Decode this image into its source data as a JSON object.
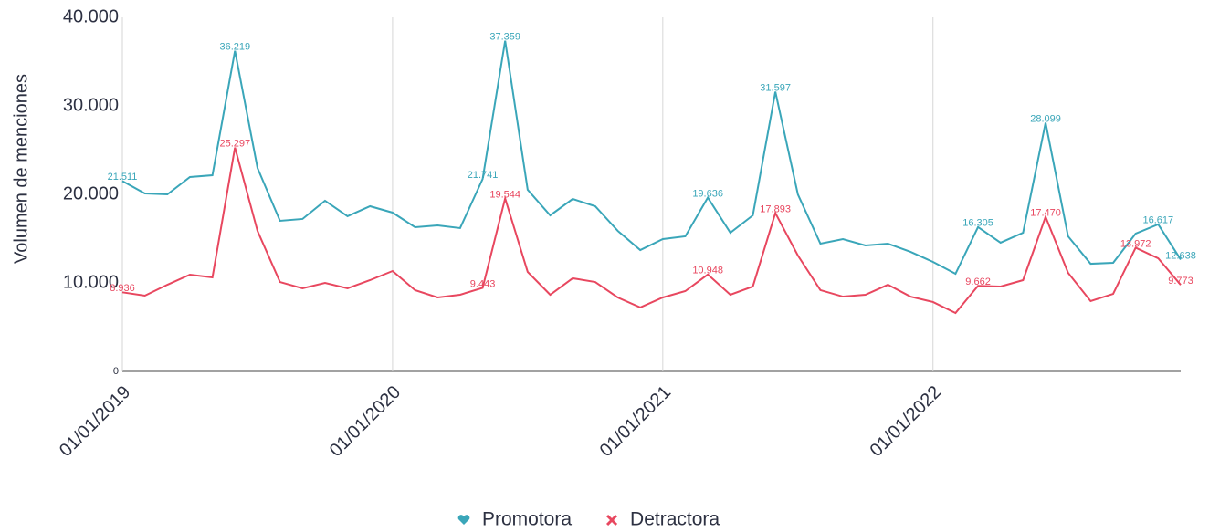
{
  "chart_data": {
    "type": "line",
    "y_label": "Volumen de menciones",
    "x": [
      "2019-01-01",
      "2019-02-01",
      "2019-03-01",
      "2019-04-01",
      "2019-05-01",
      "2019-06-01",
      "2019-07-01",
      "2019-08-01",
      "2019-09-01",
      "2019-10-01",
      "2019-11-01",
      "2019-12-01",
      "2020-01-01",
      "2020-02-01",
      "2020-03-01",
      "2020-04-01",
      "2020-05-01",
      "2020-06-01",
      "2020-07-01",
      "2020-08-01",
      "2020-09-01",
      "2020-10-01",
      "2020-11-01",
      "2020-12-01",
      "2021-01-01",
      "2021-02-01",
      "2021-03-01",
      "2021-04-01",
      "2021-05-01",
      "2021-06-01",
      "2021-07-01",
      "2021-08-01",
      "2021-09-01",
      "2021-10-01",
      "2021-11-01",
      "2021-12-01",
      "2022-01-01",
      "2022-02-01",
      "2022-03-01",
      "2022-04-01",
      "2022-05-01",
      "2022-06-01",
      "2022-07-01",
      "2022-08-01",
      "2022-09-01",
      "2022-10-01",
      "2022-11-01",
      "2022-12-01"
    ],
    "xlim": [
      "2019-01-01",
      "2022-12-01"
    ],
    "xticks": [
      {
        "value": "2019-01-01",
        "label": "01/01/2019"
      },
      {
        "value": "2020-01-01",
        "label": "01/01/2020"
      },
      {
        "value": "2021-01-01",
        "label": "01/01/2021"
      },
      {
        "value": "2022-01-01",
        "label": "01/01/2022"
      }
    ],
    "ylim": [
      0,
      40000
    ],
    "yticks": [
      0,
      {
        "value": 10000,
        "label": "10.000"
      },
      {
        "value": 20000,
        "label": "20.000"
      },
      {
        "value": 30000,
        "label": "30.000"
      },
      {
        "value": 40000,
        "label": "40.000"
      }
    ],
    "grid": true,
    "legend": "bottom",
    "series": [
      {
        "name": "Promotora",
        "color": "#3aa6b9",
        "values": [
          21511,
          20100,
          20000,
          21960,
          22160,
          36219,
          22990,
          17010,
          17220,
          19280,
          17530,
          18660,
          17940,
          16290,
          16490,
          16190,
          21741,
          37359,
          20520,
          17630,
          19480,
          18660,
          15880,
          13710,
          14950,
          15260,
          19636,
          15670,
          17630,
          31597,
          20000,
          14430,
          14950,
          14230,
          14430,
          13510,
          12370,
          11030,
          16305,
          14540,
          15670,
          28099,
          15260,
          12160,
          12270,
          15570,
          16617,
          12638
        ],
        "value_labels": [
          "21.511",
          null,
          null,
          null,
          null,
          "36.219",
          null,
          null,
          null,
          null,
          null,
          null,
          null,
          null,
          null,
          null,
          "21.741",
          "37.359",
          null,
          null,
          null,
          null,
          null,
          null,
          null,
          null,
          "19.636",
          null,
          null,
          "31.597",
          null,
          null,
          null,
          null,
          null,
          null,
          null,
          null,
          "16.305",
          null,
          null,
          "28.099",
          null,
          null,
          null,
          null,
          "16.617",
          "12.638"
        ]
      },
      {
        "name": "Detractora",
        "color": "#e8475f",
        "values": [
          8936,
          8560,
          9790,
          10930,
          10620,
          25297,
          15880,
          10100,
          9380,
          10000,
          9380,
          10310,
          11340,
          9180,
          8350,
          8660,
          9443,
          19544,
          11240,
          8660,
          10520,
          10100,
          8350,
          7220,
          8350,
          9070,
          10948,
          8660,
          9590,
          17893,
          13090,
          9180,
          8450,
          8660,
          9790,
          8450,
          7840,
          6600,
          9662,
          9590,
          10310,
          17470,
          11130,
          7940,
          8760,
          13972,
          12780,
          9773
        ],
        "value_labels": [
          "8.936",
          null,
          null,
          null,
          null,
          "25.297",
          null,
          null,
          null,
          null,
          null,
          null,
          null,
          null,
          null,
          null,
          "9.443",
          "19.544",
          null,
          null,
          null,
          null,
          null,
          null,
          null,
          null,
          "10.948",
          null,
          null,
          "17.893",
          null,
          null,
          null,
          null,
          null,
          null,
          null,
          null,
          "9.662",
          null,
          null,
          "17.470",
          null,
          null,
          null,
          "13.972",
          null,
          "9.773"
        ]
      }
    ]
  }
}
